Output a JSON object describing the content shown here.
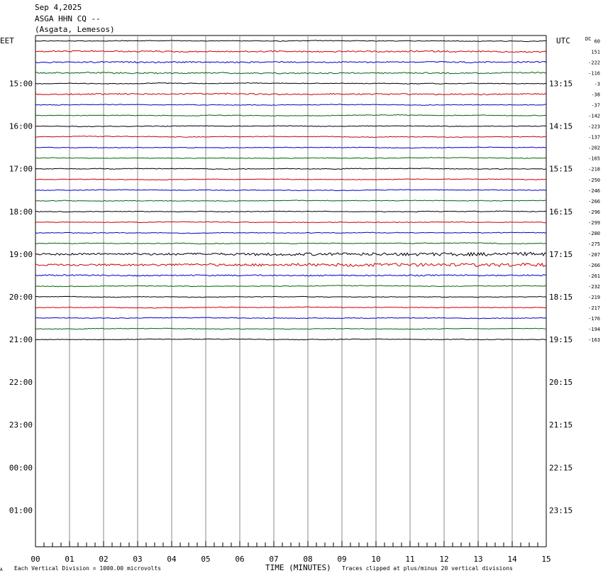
{
  "header": {
    "date": "Sep 4,2025",
    "station": "ASGA HHN CQ --",
    "location": "(Asgata, Lemesos)"
  },
  "left_tz": "EET",
  "right_tz": "UTC",
  "dc_label": "DC",
  "footer": {
    "note_left": "Each Vertical Division = 1000.00 microvolts",
    "axis_title": "TIME (MINUTES)",
    "note_right": "Traces clipped at plus/minus 20 vertical divisions",
    "corner_mark": "A"
  },
  "chart_data": {
    "type": "line",
    "x_axis": {
      "label": "TIME (MINUTES)",
      "range": [
        0,
        15
      ],
      "ticks": [
        "00",
        "01",
        "02",
        "03",
        "04",
        "05",
        "06",
        "07",
        "08",
        "09",
        "10",
        "11",
        "12",
        "13",
        "14",
        "15"
      ]
    },
    "left_hour_labels": [
      "15:00",
      "16:00",
      "17:00",
      "18:00",
      "19:00",
      "20:00",
      "21:00",
      "22:00",
      "23:00",
      "00:00",
      "01:00"
    ],
    "right_hour_labels": [
      "13:15",
      "14:15",
      "15:15",
      "16:15",
      "17:15",
      "18:15",
      "19:15",
      "20:15",
      "21:15",
      "22:15",
      "23:15"
    ],
    "trace_colors": [
      "#000000",
      "#cc0000",
      "#0000cc",
      "#006600"
    ],
    "dc_offsets": [
      "60",
      "151",
      "-222",
      "-116",
      "-3",
      "-38",
      "-37",
      "-142",
      "-223",
      "-137",
      "-202",
      "-165",
      "-218",
      "-250",
      "-246",
      "-266",
      "-296",
      "-299",
      "-280",
      "-275",
      "-287",
      "-266",
      "-261",
      "-232",
      "-219",
      "-217",
      "-176",
      "-194",
      "-163"
    ],
    "trace_activity": [
      1,
      2,
      2,
      2,
      1,
      2,
      1,
      1,
      1,
      1,
      1,
      1,
      1,
      1,
      1,
      1,
      1,
      1,
      1,
      1,
      3,
      3,
      2,
      1,
      1,
      1,
      1,
      1,
      1
    ],
    "grid": true
  }
}
